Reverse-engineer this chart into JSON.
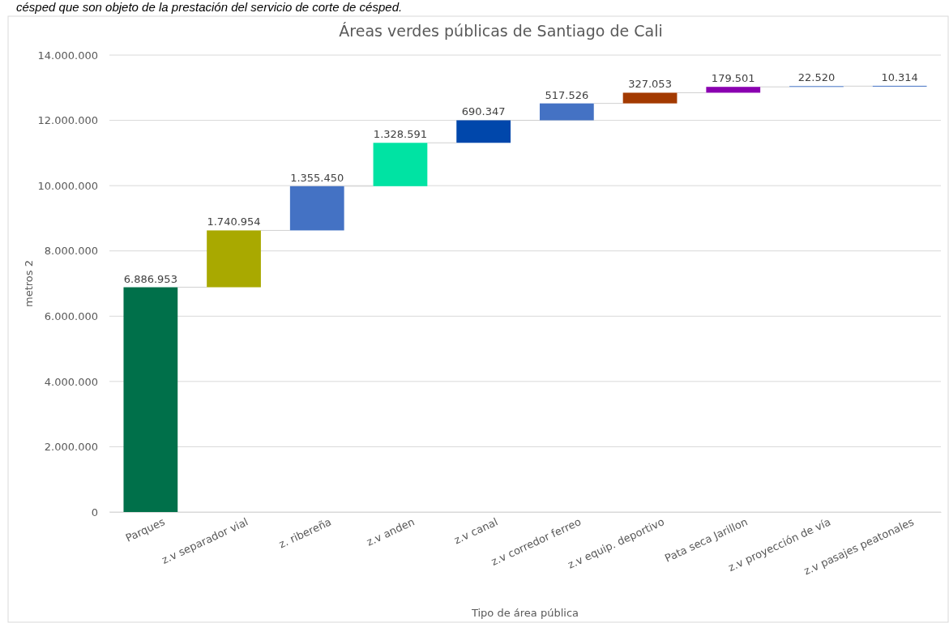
{
  "chart_data": {
    "type": "bar",
    "title": "Áreas verdes públicas de Santiago de Cali",
    "xlabel": "Tipo de área pública",
    "ylabel": "metros 2",
    "annotations": [
      "césped que son objeto de la prestación del servicio de corte de césped."
    ],
    "categories": [
      "Parques",
      "z.v separador vial",
      "z. ribereña",
      "z.v anden",
      "z.v canal",
      "z.v corredor ferreo",
      "z.v equip. deportivo",
      "Pata seca Jarillon",
      "z.v proyección de vía",
      "z.v pasajes peatonales"
    ],
    "values": [
      6886953,
      1740954,
      1355450,
      1328591,
      690347,
      517526,
      327053,
      179501,
      22520,
      10314
    ],
    "base": [
      0,
      6886953,
      8627907,
      9983357,
      11311948,
      12002295,
      12519821,
      12846874,
      13026375,
      13048895
    ],
    "colors": [
      "#00704a",
      "#a9a900",
      "#4472c4",
      "#00e3a3",
      "#0047ab",
      "#4472c4",
      "#a33a00",
      "#8a00b0",
      "#4472c4",
      "#4472c4"
    ],
    "value_labels": [
      "6.886.953",
      "1.740.954",
      "1.355.450",
      "1.328.591",
      "690.347",
      "517.526",
      "327.053",
      "179.501",
      "22.520",
      "10.314"
    ],
    "ylim": [
      0,
      14000000
    ],
    "yticks": [
      {
        "value": 0,
        "label": "0"
      },
      {
        "value": 2000000,
        "label": "2.000.000"
      },
      {
        "value": 4000000,
        "label": "4.000.000"
      },
      {
        "value": 6000000,
        "label": "6.000.000"
      },
      {
        "value": 8000000,
        "label": "8.000.000"
      },
      {
        "value": 10000000,
        "label": "10.000.000"
      },
      {
        "value": 12000000,
        "label": "12.000.000"
      },
      {
        "value": 14000000,
        "label": "14.000.000"
      }
    ],
    "grid": "y"
  }
}
